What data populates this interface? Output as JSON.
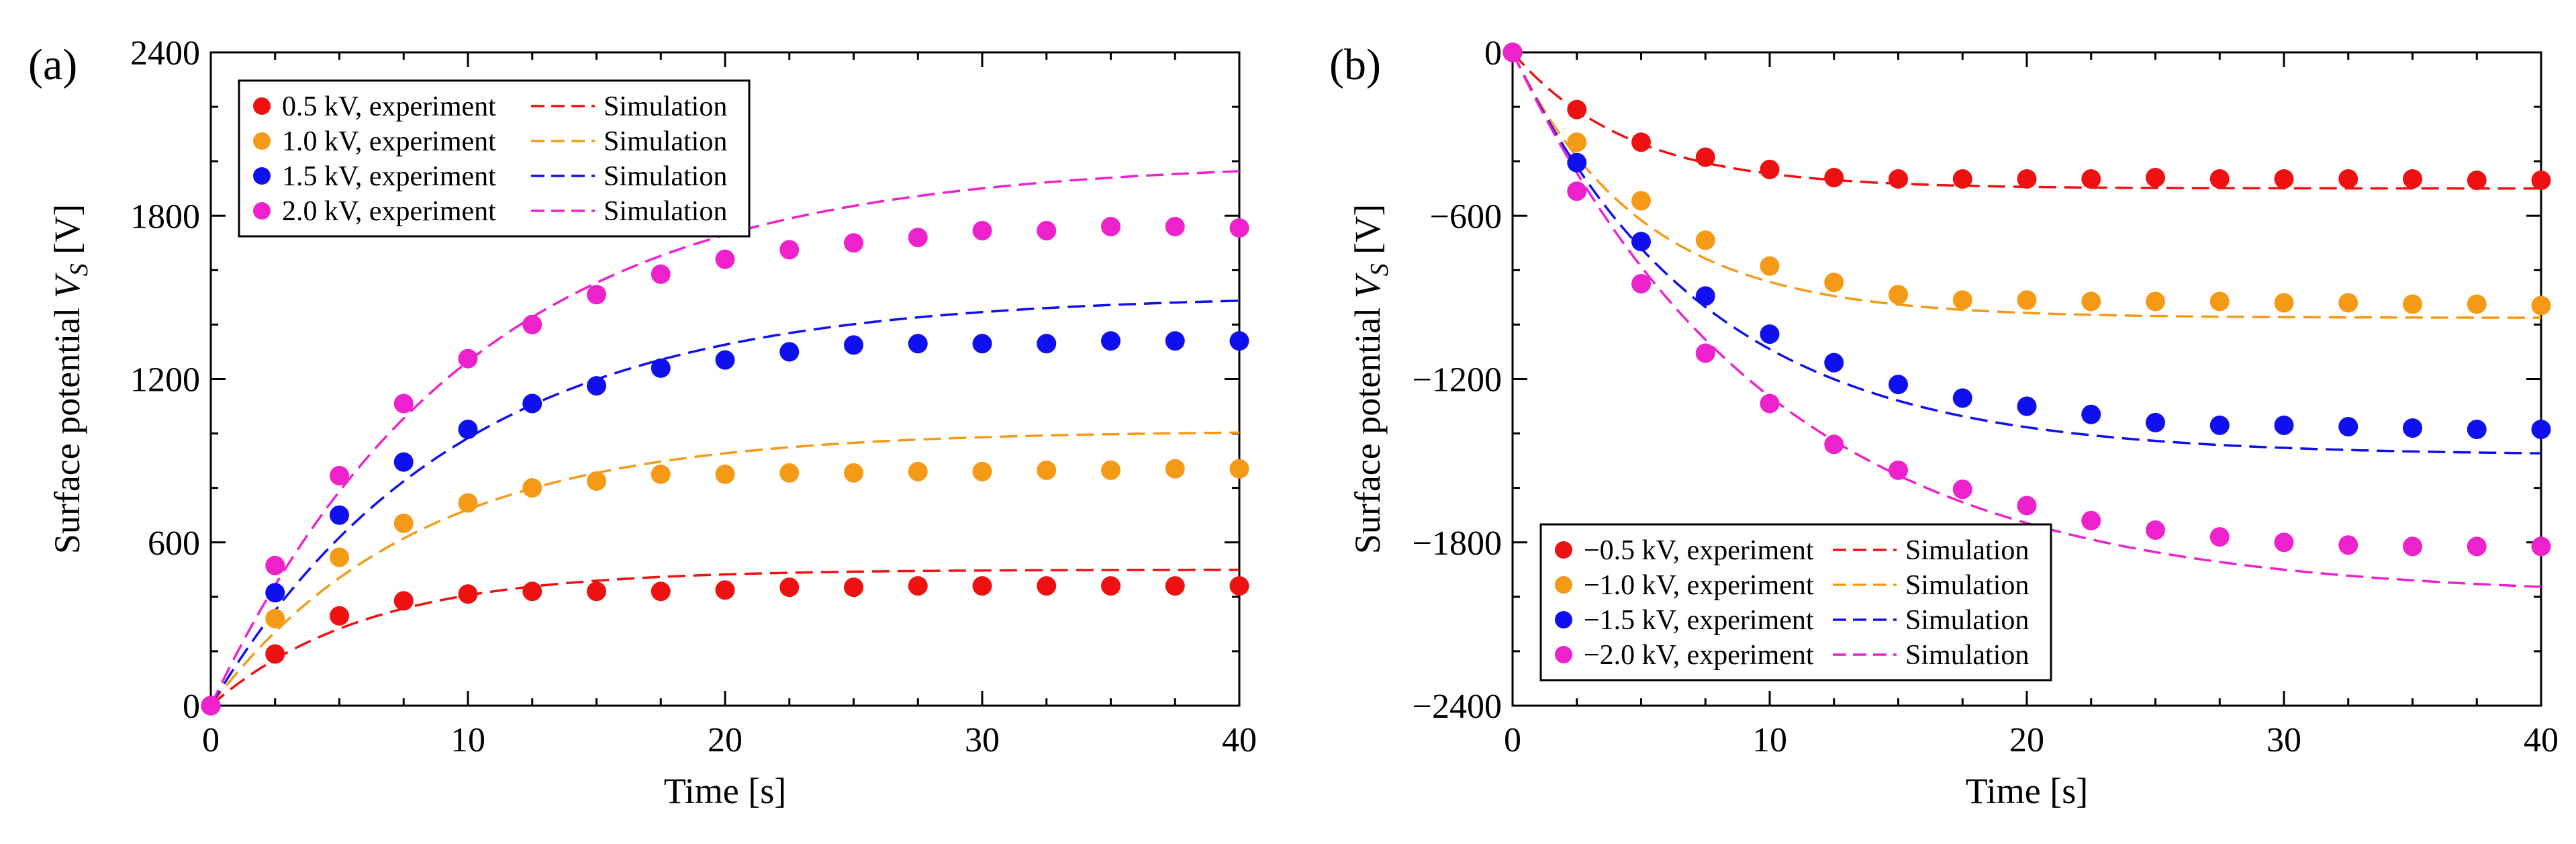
{
  "chart_data": [
    {
      "type": "scatter",
      "panel_label": "(a)",
      "xlabel": "Time  [s]",
      "ylabel_main": "Surface potential ",
      "ylabel_var": "V",
      "ylabel_sub": "S",
      "ylabel_unit": " [V]",
      "xlim": [
        0,
        40
      ],
      "ylim": [
        0,
        2400
      ],
      "xticks": [
        0,
        10,
        20,
        30,
        40
      ],
      "yticks": [
        0,
        600,
        1200,
        1800,
        2400
      ],
      "xtick_labels": [
        "0",
        "10",
        "20",
        "30",
        "40"
      ],
      "ytick_labels": [
        "0",
        "600",
        "1200",
        "1800",
        "2400"
      ],
      "legend_position": "top-left",
      "series": [
        {
          "name": "0.5 kV, experiment",
          "sim_name": "Simulation",
          "color": "#ee1111",
          "x": [
            0,
            2.5,
            5,
            7.5,
            10,
            12.5,
            15,
            17.5,
            20,
            22.5,
            25,
            27.5,
            30,
            32.5,
            35,
            37.5,
            40
          ],
          "y": [
            0,
            190,
            330,
            385,
            410,
            420,
            420,
            420,
            425,
            435,
            435,
            440,
            440,
            440,
            440,
            440,
            440
          ],
          "sim": {
            "a": 500,
            "tau": 6.0
          }
        },
        {
          "name": "1.0 kV, experiment",
          "sim_name": "Simulation",
          "color": "#f59a16",
          "x": [
            0,
            2.5,
            5,
            7.5,
            10,
            12.5,
            15,
            17.5,
            20,
            22.5,
            25,
            27.5,
            30,
            32.5,
            35,
            37.5,
            40
          ],
          "y": [
            0,
            320,
            545,
            670,
            745,
            800,
            825,
            850,
            850,
            855,
            855,
            860,
            860,
            865,
            865,
            870,
            870
          ],
          "sim": {
            "a": 1010,
            "tau": 8.0
          }
        },
        {
          "name": "1.5 kV, experiment",
          "sim_name": "Simulation",
          "color": "#1010ee",
          "x": [
            0,
            2.5,
            5,
            7.5,
            10,
            12.5,
            15,
            17.5,
            20,
            22.5,
            25,
            27.5,
            30,
            32.5,
            35,
            37.5,
            40
          ],
          "y": [
            0,
            415,
            700,
            895,
            1015,
            1110,
            1175,
            1240,
            1270,
            1300,
            1325,
            1330,
            1330,
            1330,
            1340,
            1340,
            1340
          ],
          "sim": {
            "a": 1510,
            "tau": 9.5
          }
        },
        {
          "name": "2.0 kV, experiment",
          "sim_name": "Simulation",
          "color": "#ee22cc",
          "x": [
            0,
            2.5,
            5,
            7.5,
            10,
            12.5,
            15,
            17.5,
            20,
            22.5,
            25,
            27.5,
            30,
            32.5,
            35,
            37.5,
            40
          ],
          "y": [
            0,
            515,
            845,
            1110,
            1275,
            1400,
            1510,
            1585,
            1640,
            1675,
            1700,
            1720,
            1745,
            1745,
            1760,
            1760,
            1755
          ],
          "sim": {
            "a": 2000,
            "tau": 10.0
          }
        }
      ]
    },
    {
      "type": "scatter",
      "panel_label": "(b)",
      "xlabel": "Time  [s]",
      "ylabel_main": "Surface potential ",
      "ylabel_var": "V",
      "ylabel_sub": "S",
      "ylabel_unit": " [V]",
      "xlim": [
        0,
        40
      ],
      "ylim": [
        -2400,
        0
      ],
      "xticks": [
        0,
        10,
        20,
        30,
        40
      ],
      "yticks": [
        0,
        -600,
        -1200,
        -1800,
        -2400
      ],
      "xtick_labels": [
        "0",
        "10",
        "20",
        "30",
        "40"
      ],
      "ytick_labels": [
        "0",
        "−600",
        "−1200",
        "−1800",
        "−2400"
      ],
      "legend_position": "bottom-left",
      "series": [
        {
          "name": "−0.5 kV, experiment",
          "sim_name": "Simulation",
          "color": "#ee1111",
          "x": [
            0,
            2.5,
            5,
            7.5,
            10,
            12.5,
            15,
            17.5,
            20,
            22.5,
            25,
            27.5,
            30,
            32.5,
            35,
            37.5,
            40
          ],
          "y": [
            0,
            -210,
            -330,
            -385,
            -430,
            -460,
            -465,
            -465,
            -465,
            -465,
            -460,
            -465,
            -465,
            -465,
            -465,
            -470,
            -470
          ],
          "sim": {
            "a": -500,
            "tau": 4.5
          }
        },
        {
          "name": "−1.0 kV, experiment",
          "sim_name": "Simulation",
          "color": "#f59a16",
          "x": [
            0,
            2.5,
            5,
            7.5,
            10,
            12.5,
            15,
            17.5,
            20,
            22.5,
            25,
            27.5,
            30,
            32.5,
            35,
            37.5,
            40
          ],
          "y": [
            0,
            -330,
            -545,
            -690,
            -785,
            -845,
            -890,
            -910,
            -910,
            -915,
            -915,
            -915,
            -920,
            -920,
            -925,
            -925,
            -930
          ],
          "sim": {
            "a": -975,
            "tau": 5.0
          }
        },
        {
          "name": "−1.5 kV, experiment",
          "sim_name": "Simulation",
          "color": "#1010ee",
          "x": [
            0,
            2.5,
            5,
            7.5,
            10,
            12.5,
            15,
            17.5,
            20,
            22.5,
            25,
            27.5,
            30,
            32.5,
            35,
            37.5,
            40
          ],
          "y": [
            0,
            -405,
            -695,
            -895,
            -1035,
            -1140,
            -1220,
            -1270,
            -1300,
            -1330,
            -1360,
            -1370,
            -1370,
            -1375,
            -1380,
            -1385,
            -1385
          ],
          "sim": {
            "a": -1480,
            "tau": 7.5
          }
        },
        {
          "name": "−2.0 kV, experiment",
          "sim_name": "Simulation",
          "color": "#ee22cc",
          "x": [
            0,
            2.5,
            5,
            7.5,
            10,
            12.5,
            15,
            17.5,
            20,
            22.5,
            25,
            27.5,
            30,
            32.5,
            35,
            37.5,
            40
          ],
          "y": [
            0,
            -510,
            -850,
            -1105,
            -1290,
            -1440,
            -1535,
            -1605,
            -1665,
            -1720,
            -1755,
            -1780,
            -1800,
            -1810,
            -1815,
            -1815,
            -1815
          ],
          "sim": {
            "a": -2000,
            "tau": 10.0
          }
        }
      ]
    }
  ]
}
